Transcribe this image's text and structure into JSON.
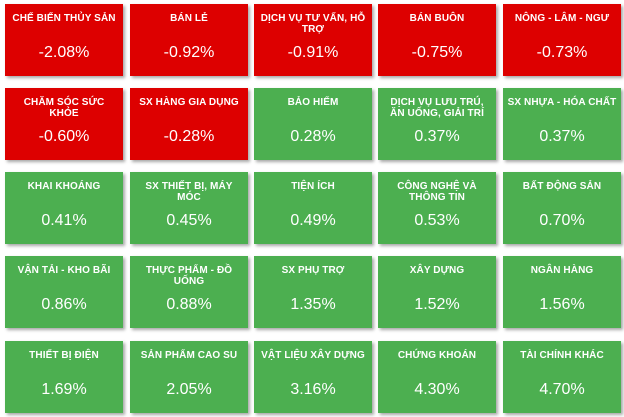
{
  "colors": {
    "negative": "#dd0000",
    "positive": "#4caf50",
    "text": "#ffffff"
  },
  "sectors": [
    {
      "name": "CHẾ BIẾN THỦY SẢN",
      "change": "-2.08%",
      "trend": "negative"
    },
    {
      "name": "BÁN LẺ",
      "change": "-0.92%",
      "trend": "negative"
    },
    {
      "name": "DỊCH VỤ TƯ VẤN, HỖ TRỢ",
      "change": "-0.91%",
      "trend": "negative"
    },
    {
      "name": "BÁN BUÔN",
      "change": "-0.75%",
      "trend": "negative"
    },
    {
      "name": "NÔNG - LÂM - NGƯ",
      "change": "-0.73%",
      "trend": "negative"
    },
    {
      "name": "CHĂM SÓC SỨC KHỎE",
      "change": "-0.60%",
      "trend": "negative"
    },
    {
      "name": "SX HÀNG GIA DỤNG",
      "change": "-0.28%",
      "trend": "negative"
    },
    {
      "name": "BẢO HIỂM",
      "change": "0.28%",
      "trend": "positive"
    },
    {
      "name": "DỊCH VỤ LƯU TRÚ, ĂN UỐNG, GIẢI TRÍ",
      "change": "0.37%",
      "trend": "positive"
    },
    {
      "name": "SX NHỰA - HÓA CHẤT",
      "change": "0.37%",
      "trend": "positive"
    },
    {
      "name": "KHAI KHOÁNG",
      "change": "0.41%",
      "trend": "positive"
    },
    {
      "name": "SX THIẾT BỊ, MÁY MÓC",
      "change": "0.45%",
      "trend": "positive"
    },
    {
      "name": "TIỆN ÍCH",
      "change": "0.49%",
      "trend": "positive"
    },
    {
      "name": "CÔNG NGHỆ VÀ THÔNG TIN",
      "change": "0.53%",
      "trend": "positive"
    },
    {
      "name": "BẤT ĐỘNG SẢN",
      "change": "0.70%",
      "trend": "positive"
    },
    {
      "name": "VẬN TẢI - KHO BÃI",
      "change": "0.86%",
      "trend": "positive"
    },
    {
      "name": "THỰC PHẨM - ĐỒ UỐNG",
      "change": "0.88%",
      "trend": "positive"
    },
    {
      "name": "SX PHỤ TRỢ",
      "change": "1.35%",
      "trend": "positive"
    },
    {
      "name": "XÂY DỰNG",
      "change": "1.52%",
      "trend": "positive"
    },
    {
      "name": "NGÂN HÀNG",
      "change": "1.56%",
      "trend": "positive"
    },
    {
      "name": "THIẾT BỊ ĐIỆN",
      "change": "1.69%",
      "trend": "positive"
    },
    {
      "name": "SẢN PHẨM CAO SU",
      "change": "2.05%",
      "trend": "positive"
    },
    {
      "name": "VẬT LIỆU XÂY DỰNG",
      "change": "3.16%",
      "trend": "positive"
    },
    {
      "name": "CHỨNG KHOÁN",
      "change": "4.30%",
      "trend": "positive"
    },
    {
      "name": "TÀI CHÍNH KHÁC",
      "change": "4.70%",
      "trend": "positive"
    }
  ]
}
